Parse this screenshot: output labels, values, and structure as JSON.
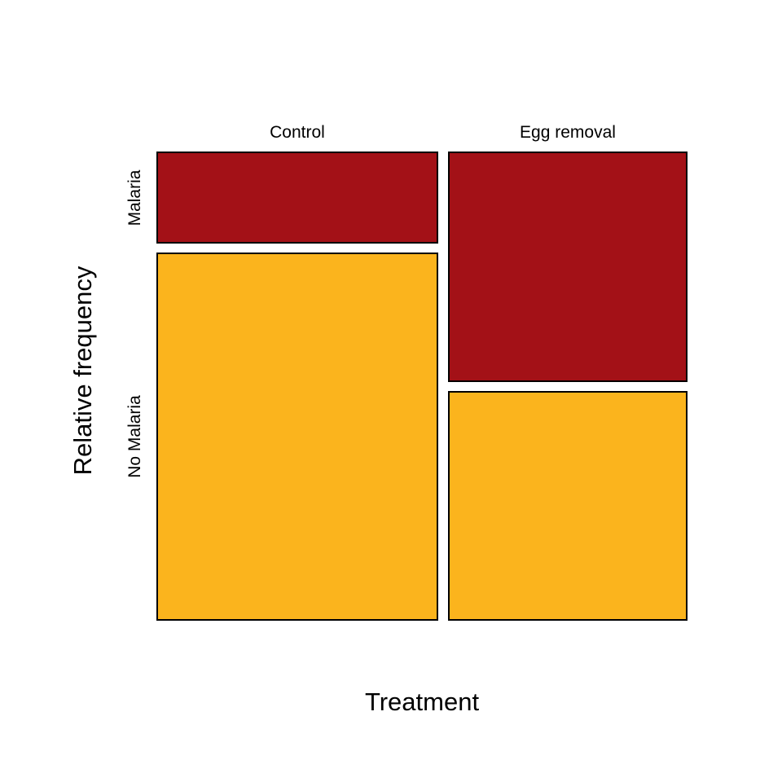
{
  "chart_data": {
    "type": "mosaic",
    "title": "",
    "xlabel": "Treatment",
    "ylabel": "Relative frequency",
    "x_categories": [
      "Control",
      "Egg removal"
    ],
    "y_categories": [
      "Malaria",
      "No Malaria"
    ],
    "column_width_fractions": [
      0.54,
      0.46
    ],
    "proportions": {
      "Control": {
        "Malaria": 0.2,
        "No Malaria": 0.8
      },
      "Egg removal": {
        "Malaria": 0.5,
        "No Malaria": 0.5
      }
    },
    "colors": {
      "Malaria": "#A31117",
      "No Malaria": "#FBB41D"
    },
    "tile_border_color": "#000000",
    "background_color": "#FFFFFF",
    "grid": "off",
    "legend": "none",
    "y_axis_range": [
      0,
      1
    ]
  }
}
